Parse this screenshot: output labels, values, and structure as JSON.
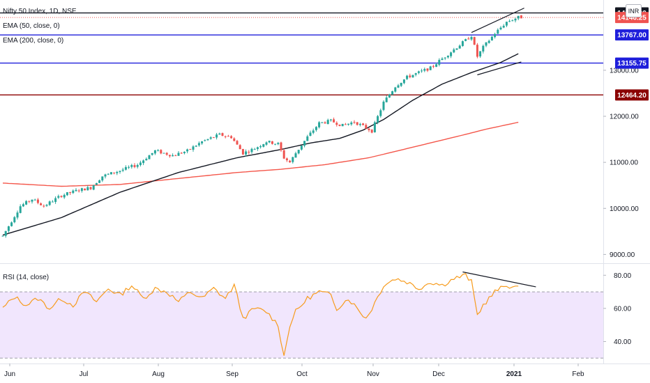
{
  "legend": {
    "symbol": "Nifty 50 Index, 1D, NSE",
    "ema50": "EMA (50, close, 0)",
    "ema200": "EMA (200, close, 0)",
    "rsi": "RSI (14, close)"
  },
  "currency_button": "INR",
  "colors": {
    "up": "#26a69a",
    "down": "#ef5350",
    "ema50": "#131722",
    "ema200": "#f4564a",
    "rsi": "#f79b1c",
    "rsi_band": "#f1e6fd",
    "blue_line": "#1f1fdb",
    "darkred_line": "#8b0000"
  },
  "chart_data": [
    {
      "type": "candlestick",
      "title": "Nifty 50 Index, 1D, NSE",
      "ylim": [
        8900,
        14450
      ],
      "price_ticks": [
        {
          "value": 9000,
          "label": "9000.00"
        },
        {
          "value": 10000,
          "label": "10000.00"
        },
        {
          "value": 11000,
          "label": "11000.00"
        },
        {
          "value": 12000,
          "label": "12000.00"
        },
        {
          "value": 13000,
          "label": "13000.00"
        }
      ],
      "time_ticks": [
        "Jun",
        "Jul",
        "Aug",
        "Sep",
        "Oct",
        "Nov",
        "Dec",
        "2021",
        "Feb"
      ],
      "anchors": [
        [
          0,
          9400
        ],
        [
          6,
          10050
        ],
        [
          10,
          10200
        ],
        [
          14,
          10050
        ],
        [
          20,
          10280
        ],
        [
          26,
          10400
        ],
        [
          30,
          10450
        ],
        [
          34,
          10700
        ],
        [
          40,
          10820
        ],
        [
          46,
          10950
        ],
        [
          52,
          11250
        ],
        [
          58,
          11150
        ],
        [
          63,
          11250
        ],
        [
          68,
          11450
        ],
        [
          74,
          11600
        ],
        [
          78,
          11550
        ],
        [
          82,
          11200
        ],
        [
          86,
          11300
        ],
        [
          90,
          11450
        ],
        [
          94,
          11400
        ],
        [
          96,
          11100
        ],
        [
          98,
          11000
        ],
        [
          100,
          11200
        ],
        [
          104,
          11550
        ],
        [
          108,
          11850
        ],
        [
          112,
          11900
        ],
        [
          116,
          11800
        ],
        [
          120,
          11880
        ],
        [
          124,
          11750
        ],
        [
          126,
          11680
        ],
        [
          130,
          12300
        ],
        [
          134,
          12650
        ],
        [
          138,
          12850
        ],
        [
          142,
          12950
        ],
        [
          146,
          13050
        ],
        [
          150,
          13250
        ],
        [
          154,
          13450
        ],
        [
          158,
          13650
        ],
        [
          160,
          13750
        ],
        [
          162,
          13300
        ],
        [
          164,
          13500
        ],
        [
          168,
          13800
        ],
        [
          172,
          14050
        ],
        [
          176,
          14150
        ]
      ],
      "series": [
        {
          "name": "EMA (50, close, 0)",
          "points": [
            [
              0,
              9420
            ],
            [
              20,
              9800
            ],
            [
              40,
              10350
            ],
            [
              60,
              10780
            ],
            [
              80,
              11100
            ],
            [
              95,
              11280
            ],
            [
              105,
              11420
            ],
            [
              115,
              11520
            ],
            [
              123,
              11700
            ],
            [
              130,
              11930
            ],
            [
              140,
              12350
            ],
            [
              150,
              12700
            ],
            [
              160,
              12950
            ],
            [
              170,
              13170
            ],
            [
              176,
              13360
            ]
          ]
        },
        {
          "name": "EMA (200, close, 0)",
          "points": [
            [
              0,
              10550
            ],
            [
              20,
              10480
            ],
            [
              40,
              10520
            ],
            [
              60,
              10650
            ],
            [
              80,
              10780
            ],
            [
              95,
              10850
            ],
            [
              110,
              10950
            ],
            [
              125,
              11100
            ],
            [
              140,
              11330
            ],
            [
              155,
              11560
            ],
            [
              165,
              11720
            ],
            [
              176,
              11870
            ]
          ]
        }
      ],
      "lines": [
        {
          "price": 14245.0,
          "label": "14245.00",
          "color": "#131722",
          "tag_bg": "#131722",
          "tag_fg": "#ffffff"
        },
        {
          "price": 14146.25,
          "label": "14146.25",
          "color": "#ef5350",
          "tag_bg": "#ef5350",
          "tag_fg": "#ffffff",
          "dotted": true
        },
        {
          "price": 13767.0,
          "label": "13767.00",
          "color": "#1f1fdb",
          "tag_bg": "#1f1fdb",
          "tag_fg": "#ffffff"
        },
        {
          "price": 13155.75,
          "label": "13155.75",
          "color": "#1f1fdb",
          "tag_bg": "#1f1fdb",
          "tag_fg": "#ffffff"
        },
        {
          "price": 12464.2,
          "label": "12464.20",
          "color": "#8b0000",
          "tag_bg": "#8b0000",
          "tag_fg": "#ffffff"
        }
      ],
      "trendlines": [
        {
          "from": [
            160,
            13820
          ],
          "to": [
            178,
            14350
          ]
        },
        {
          "from": [
            162,
            12900
          ],
          "to": [
            177,
            13180
          ]
        }
      ]
    },
    {
      "type": "line",
      "title": "RSI (14, close)",
      "ylim": [
        28,
        86
      ],
      "band": [
        30,
        70
      ],
      "ticks": [
        {
          "value": 40,
          "label": "40.00"
        },
        {
          "value": 60,
          "label": "60.00"
        },
        {
          "value": 80,
          "label": "80.00"
        }
      ],
      "anchors": [
        [
          0,
          60
        ],
        [
          4,
          67
        ],
        [
          8,
          62
        ],
        [
          12,
          66
        ],
        [
          16,
          60
        ],
        [
          20,
          66
        ],
        [
          24,
          62
        ],
        [
          28,
          70
        ],
        [
          32,
          64
        ],
        [
          36,
          72
        ],
        [
          40,
          68
        ],
        [
          44,
          74
        ],
        [
          48,
          66
        ],
        [
          52,
          72
        ],
        [
          56,
          70
        ],
        [
          60,
          64
        ],
        [
          64,
          70
        ],
        [
          68,
          66
        ],
        [
          72,
          72
        ],
        [
          76,
          66
        ],
        [
          79,
          74
        ],
        [
          82,
          54
        ],
        [
          86,
          60
        ],
        [
          90,
          58
        ],
        [
          94,
          50
        ],
        [
          96,
          31
        ],
        [
          98,
          50
        ],
        [
          100,
          58
        ],
        [
          104,
          66
        ],
        [
          108,
          70
        ],
        [
          112,
          68
        ],
        [
          114,
          60
        ],
        [
          118,
          66
        ],
        [
          120,
          62
        ],
        [
          124,
          54
        ],
        [
          126,
          60
        ],
        [
          130,
          74
        ],
        [
          134,
          78
        ],
        [
          138,
          76
        ],
        [
          142,
          72
        ],
        [
          146,
          76
        ],
        [
          150,
          74
        ],
        [
          154,
          78
        ],
        [
          158,
          80
        ],
        [
          160,
          76
        ],
        [
          162,
          56
        ],
        [
          164,
          62
        ],
        [
          168,
          70
        ],
        [
          172,
          74
        ],
        [
          176,
          72
        ]
      ],
      "trendline": {
        "from": [
          157,
          82
        ],
        "to": [
          182,
          73
        ]
      }
    }
  ]
}
